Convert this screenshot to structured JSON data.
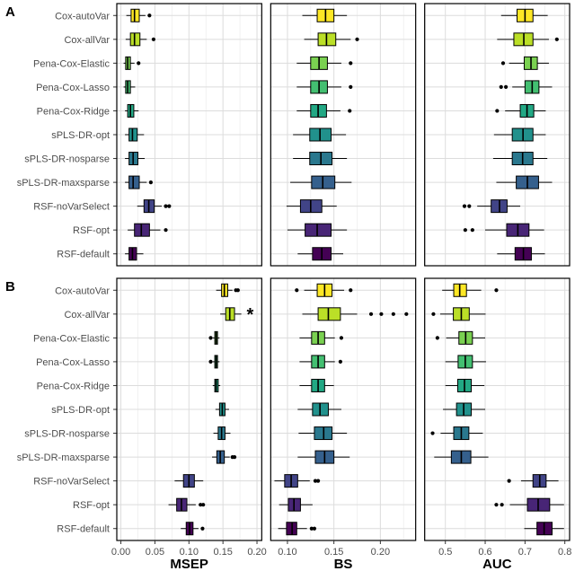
{
  "figure": {
    "description": "Two-row faceted horizontal boxplot figure comparing survival models",
    "row_labels": [
      "A",
      "B"
    ]
  },
  "style": {
    "grid_major": "#DCDCDC",
    "grid_minor": "#EEEEEE",
    "panel_border": "#000000",
    "label_color": "#4D4D4D",
    "box_stroke": "#000000"
  },
  "chart_data": {
    "type": "boxplot",
    "orientation": "horizontal",
    "methods": [
      "Cox-autoVar",
      "Cox-allVar",
      "Pena-Cox-Elastic",
      "Pena-Cox-Lasso",
      "Pena-Cox-Ridge",
      "sPLS-DR-opt",
      "sPLS-DR-nosparse",
      "sPLS-DR-maxsparse",
      "RSF-noVarSelect",
      "RSF-opt",
      "RSF-default"
    ],
    "colors": [
      "#FDE725",
      "#BBDF27",
      "#7AD151",
      "#43BF71",
      "#22A884",
      "#21918C",
      "#2A788E",
      "#35608D",
      "#414487",
      "#482576",
      "#440154"
    ],
    "columns": [
      {
        "metric": "MSEP",
        "xlim": [
          -0.006,
          0.207
        ],
        "ticks": [
          0,
          0.05,
          0.1,
          0.15,
          0.2
        ],
        "tick_labels": [
          "0.00",
          "0.05",
          "0.10",
          "0.15",
          "0.20"
        ]
      },
      {
        "metric": "BS",
        "xlim": [
          0.082,
          0.238
        ],
        "ticks": [
          0.1,
          0.15,
          0.2
        ],
        "tick_labels": [
          "0.10",
          "0.15",
          "0.20"
        ]
      },
      {
        "metric": "AUC",
        "xlim": [
          0.448,
          0.812
        ],
        "ticks": [
          0.5,
          0.6,
          0.7,
          0.8
        ],
        "tick_labels": [
          "0.5",
          "0.6",
          "0.7",
          "0.8"
        ]
      }
    ],
    "rows": [
      {
        "label": "A",
        "panels": {
          "MSEP": [
            {
              "lo": 0.008,
              "q1": 0.015,
              "med": 0.02,
              "q3": 0.027,
              "hi": 0.036,
              "out": [
                0.042
              ]
            },
            {
              "lo": 0.007,
              "q1": 0.014,
              "med": 0.02,
              "q3": 0.028,
              "hi": 0.038,
              "out": [
                0.048
              ]
            },
            {
              "lo": 0.004,
              "q1": 0.007,
              "med": 0.01,
              "q3": 0.014,
              "hi": 0.02,
              "out": [
                0.026
              ]
            },
            {
              "lo": 0.004,
              "q1": 0.007,
              "med": 0.01,
              "q3": 0.014,
              "hi": 0.021,
              "out": []
            },
            {
              "lo": 0.006,
              "q1": 0.01,
              "med": 0.014,
              "q3": 0.019,
              "hi": 0.026,
              "out": []
            },
            {
              "lo": 0.006,
              "q1": 0.012,
              "med": 0.017,
              "q3": 0.024,
              "hi": 0.034,
              "out": []
            },
            {
              "lo": 0.006,
              "q1": 0.012,
              "med": 0.018,
              "q3": 0.025,
              "hi": 0.035,
              "out": []
            },
            {
              "lo": 0.006,
              "q1": 0.012,
              "med": 0.018,
              "q3": 0.027,
              "hi": 0.038,
              "out": [
                0.044
              ]
            },
            {
              "lo": 0.024,
              "q1": 0.034,
              "med": 0.041,
              "q3": 0.049,
              "hi": 0.06,
              "out": [
                0.066,
                0.071
              ]
            },
            {
              "lo": 0.01,
              "q1": 0.02,
              "med": 0.03,
              "q3": 0.042,
              "hi": 0.058,
              "out": [
                0.066
              ]
            },
            {
              "lo": 0.006,
              "q1": 0.012,
              "med": 0.017,
              "q3": 0.023,
              "hi": 0.033,
              "out": []
            }
          ],
          "BS": [
            {
              "lo": 0.116,
              "q1": 0.132,
              "med": 0.141,
              "q3": 0.15,
              "hi": 0.164,
              "out": []
            },
            {
              "lo": 0.118,
              "q1": 0.133,
              "med": 0.142,
              "q3": 0.152,
              "hi": 0.168,
              "out": [
                0.175
              ]
            },
            {
              "lo": 0.11,
              "q1": 0.125,
              "med": 0.134,
              "q3": 0.143,
              "hi": 0.158,
              "out": [
                0.168
              ]
            },
            {
              "lo": 0.11,
              "q1": 0.125,
              "med": 0.134,
              "q3": 0.143,
              "hi": 0.158,
              "out": [
                0.168
              ]
            },
            {
              "lo": 0.11,
              "q1": 0.125,
              "med": 0.133,
              "q3": 0.142,
              "hi": 0.157,
              "out": [
                0.167
              ]
            },
            {
              "lo": 0.106,
              "q1": 0.124,
              "med": 0.135,
              "q3": 0.147,
              "hi": 0.163,
              "out": []
            },
            {
              "lo": 0.106,
              "q1": 0.124,
              "med": 0.136,
              "q3": 0.148,
              "hi": 0.164,
              "out": []
            },
            {
              "lo": 0.103,
              "q1": 0.126,
              "med": 0.138,
              "q3": 0.151,
              "hi": 0.169,
              "out": []
            },
            {
              "lo": 0.099,
              "q1": 0.114,
              "med": 0.125,
              "q3": 0.137,
              "hi": 0.153,
              "out": []
            },
            {
              "lo": 0.1,
              "q1": 0.119,
              "med": 0.132,
              "q3": 0.147,
              "hi": 0.164,
              "out": []
            },
            {
              "lo": 0.111,
              "q1": 0.127,
              "med": 0.137,
              "q3": 0.147,
              "hi": 0.16,
              "out": []
            }
          ],
          "AUC": [
            {
              "lo": 0.64,
              "q1": 0.68,
              "med": 0.7,
              "q3": 0.72,
              "hi": 0.757,
              "out": []
            },
            {
              "lo": 0.63,
              "q1": 0.672,
              "med": 0.697,
              "q3": 0.72,
              "hi": 0.76,
              "out": [
                0.78
              ]
            },
            {
              "lo": 0.66,
              "q1": 0.698,
              "med": 0.715,
              "q3": 0.731,
              "hi": 0.76,
              "out": [
                0.645
              ]
            },
            {
              "lo": 0.668,
              "q1": 0.7,
              "med": 0.718,
              "q3": 0.735,
              "hi": 0.768,
              "out": [
                0.64,
                0.652
              ]
            },
            {
              "lo": 0.65,
              "q1": 0.688,
              "med": 0.705,
              "q3": 0.722,
              "hi": 0.752,
              "out": [
                0.63
              ]
            },
            {
              "lo": 0.622,
              "q1": 0.668,
              "med": 0.695,
              "q3": 0.72,
              "hi": 0.752,
              "out": []
            },
            {
              "lo": 0.62,
              "q1": 0.668,
              "med": 0.694,
              "q3": 0.72,
              "hi": 0.756,
              "out": []
            },
            {
              "lo": 0.628,
              "q1": 0.678,
              "med": 0.706,
              "q3": 0.734,
              "hi": 0.768,
              "out": []
            },
            {
              "lo": 0.58,
              "q1": 0.615,
              "med": 0.636,
              "q3": 0.655,
              "hi": 0.688,
              "out": [
                0.548,
                0.56
              ]
            },
            {
              "lo": 0.6,
              "q1": 0.654,
              "med": 0.682,
              "q3": 0.71,
              "hi": 0.748,
              "out": [
                0.55,
                0.568
              ]
            },
            {
              "lo": 0.63,
              "q1": 0.675,
              "med": 0.696,
              "q3": 0.716,
              "hi": 0.75,
              "out": []
            }
          ]
        }
      },
      {
        "label": "B",
        "panels": {
          "MSEP": [
            {
              "lo": 0.14,
              "q1": 0.148,
              "med": 0.152,
              "q3": 0.157,
              "hi": 0.164,
              "out": [
                0.169,
                0.172
              ]
            },
            {
              "lo": 0.146,
              "q1": 0.154,
              "med": 0.16,
              "q3": 0.167,
              "hi": 0.177,
              "out": []
            },
            {
              "lo": 0.135,
              "q1": 0.138,
              "med": 0.14,
              "q3": 0.142,
              "hi": 0.145,
              "out": [
                0.132
              ]
            },
            {
              "lo": 0.135,
              "q1": 0.138,
              "med": 0.14,
              "q3": 0.142,
              "hi": 0.145,
              "out": [
                0.132
              ]
            },
            {
              "lo": 0.135,
              "q1": 0.138,
              "med": 0.14,
              "q3": 0.143,
              "hi": 0.146,
              "out": []
            },
            {
              "lo": 0.139,
              "q1": 0.145,
              "med": 0.149,
              "q3": 0.153,
              "hi": 0.159,
              "out": []
            },
            {
              "lo": 0.136,
              "q1": 0.143,
              "med": 0.148,
              "q3": 0.153,
              "hi": 0.161,
              "out": []
            },
            {
              "lo": 0.134,
              "q1": 0.141,
              "med": 0.146,
              "q3": 0.152,
              "hi": 0.16,
              "out": [
                0.164,
                0.167
              ]
            },
            {
              "lo": 0.079,
              "q1": 0.092,
              "med": 0.1,
              "q3": 0.108,
              "hi": 0.121,
              "out": []
            },
            {
              "lo": 0.07,
              "q1": 0.082,
              "med": 0.089,
              "q3": 0.097,
              "hi": 0.11,
              "out": [
                0.117,
                0.121
              ]
            },
            {
              "lo": 0.088,
              "q1": 0.096,
              "med": 0.101,
              "q3": 0.106,
              "hi": 0.114,
              "out": [
                0.12
              ]
            }
          ],
          "BS": [
            {
              "lo": 0.118,
              "q1": 0.132,
              "med": 0.14,
              "q3": 0.148,
              "hi": 0.161,
              "out": [
                0.11,
                0.168
              ]
            },
            {
              "lo": 0.116,
              "q1": 0.133,
              "med": 0.144,
              "q3": 0.157,
              "hi": 0.175,
              "out": [
                0.19,
                0.201,
                0.214,
                0.228
              ]
            },
            {
              "lo": 0.113,
              "q1": 0.126,
              "med": 0.133,
              "q3": 0.14,
              "hi": 0.151,
              "out": [
                0.158
              ]
            },
            {
              "lo": 0.113,
              "q1": 0.126,
              "med": 0.133,
              "q3": 0.14,
              "hi": 0.151,
              "out": [
                0.157
              ]
            },
            {
              "lo": 0.113,
              "q1": 0.126,
              "med": 0.133,
              "q3": 0.14,
              "hi": 0.15,
              "out": []
            },
            {
              "lo": 0.111,
              "q1": 0.127,
              "med": 0.135,
              "q3": 0.144,
              "hi": 0.158,
              "out": []
            },
            {
              "lo": 0.112,
              "q1": 0.129,
              "med": 0.139,
              "q3": 0.148,
              "hi": 0.164,
              "out": []
            },
            {
              "lo": 0.111,
              "q1": 0.13,
              "med": 0.14,
              "q3": 0.15,
              "hi": 0.167,
              "out": []
            },
            {
              "lo": 0.086,
              "q1": 0.097,
              "med": 0.104,
              "q3": 0.111,
              "hi": 0.124,
              "out": [
                0.13,
                0.133
              ]
            },
            {
              "lo": 0.091,
              "q1": 0.101,
              "med": 0.107,
              "q3": 0.114,
              "hi": 0.127,
              "out": []
            },
            {
              "lo": 0.09,
              "q1": 0.099,
              "med": 0.105,
              "q3": 0.11,
              "hi": 0.121,
              "out": [
                0.126,
                0.129
              ]
            }
          ],
          "AUC": [
            {
              "lo": 0.492,
              "q1": 0.521,
              "med": 0.536,
              "q3": 0.553,
              "hi": 0.59,
              "out": [
                0.628
              ]
            },
            {
              "lo": 0.487,
              "q1": 0.52,
              "med": 0.54,
              "q3": 0.56,
              "hi": 0.601,
              "out": [
                0.47
              ]
            },
            {
              "lo": 0.502,
              "q1": 0.534,
              "med": 0.551,
              "q3": 0.568,
              "hi": 0.6,
              "out": [
                0.48
              ]
            },
            {
              "lo": 0.5,
              "q1": 0.532,
              "med": 0.55,
              "q3": 0.568,
              "hi": 0.602,
              "out": []
            },
            {
              "lo": 0.5,
              "q1": 0.531,
              "med": 0.548,
              "q3": 0.565,
              "hi": 0.598,
              "out": []
            },
            {
              "lo": 0.494,
              "q1": 0.528,
              "med": 0.546,
              "q3": 0.565,
              "hi": 0.6,
              "out": []
            },
            {
              "lo": 0.488,
              "q1": 0.521,
              "med": 0.54,
              "q3": 0.559,
              "hi": 0.594,
              "out": [
                0.468
              ]
            },
            {
              "lo": 0.472,
              "q1": 0.515,
              "med": 0.54,
              "q3": 0.564,
              "hi": 0.608,
              "out": []
            },
            {
              "lo": 0.69,
              "q1": 0.72,
              "med": 0.737,
              "q3": 0.753,
              "hi": 0.784,
              "out": [
                0.66
              ]
            },
            {
              "lo": 0.662,
              "q1": 0.706,
              "med": 0.733,
              "q3": 0.762,
              "hi": 0.798,
              "out": [
                0.628,
                0.642
              ]
            },
            {
              "lo": 0.698,
              "q1": 0.73,
              "med": 0.748,
              "q3": 0.768,
              "hi": 0.798,
              "out": []
            }
          ]
        }
      }
    ],
    "annotations": [
      {
        "row": "B",
        "metric": "MSEP",
        "method": "Cox-allVar",
        "x": 0.19,
        "text": "*"
      }
    ]
  }
}
